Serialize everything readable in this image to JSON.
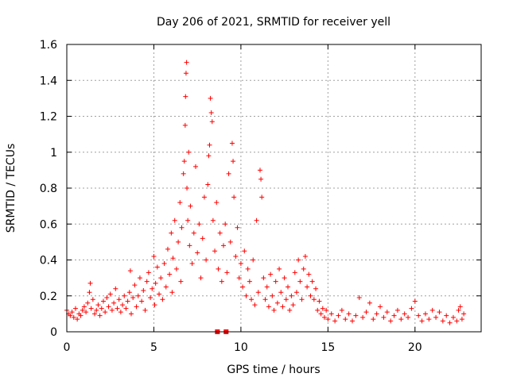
{
  "chart_data": {
    "type": "scatter",
    "title": "Day 206 of 2021, SRMTID for receiver yell",
    "xlabel": "GPS time / hours",
    "ylabel": "SRMTID / TECUs",
    "xlim": [
      0,
      23.8
    ],
    "ylim": [
      0,
      1.6
    ],
    "xticks": [
      0,
      5,
      10,
      15,
      20
    ],
    "yticks": [
      0,
      0.2,
      0.4,
      0.6,
      0.8,
      1,
      1.2,
      1.4,
      1.6
    ],
    "xtick_labels": [
      "0",
      "5",
      "10",
      "15",
      "20"
    ],
    "ytick_labels": [
      "0",
      "0.2",
      "0.4",
      "0.6",
      "0.8",
      "1",
      "1.2",
      "1.4",
      "1.6"
    ],
    "grid": true,
    "series": [
      {
        "name": "SRMTID",
        "marker": "plus",
        "color": "#ff0000",
        "points": [
          [
            0.0,
            0.12
          ],
          [
            0.1,
            0.1
          ],
          [
            0.2,
            0.09
          ],
          [
            0.3,
            0.11
          ],
          [
            0.4,
            0.08
          ],
          [
            0.5,
            0.13
          ],
          [
            0.6,
            0.07
          ],
          [
            0.7,
            0.1
          ],
          [
            0.8,
            0.09
          ],
          [
            0.9,
            0.12
          ],
          [
            1.0,
            0.14
          ],
          [
            1.1,
            0.11
          ],
          [
            1.2,
            0.16
          ],
          [
            1.3,
            0.22
          ],
          [
            1.35,
            0.27
          ],
          [
            1.4,
            0.13
          ],
          [
            1.5,
            0.18
          ],
          [
            1.6,
            0.1
          ],
          [
            1.7,
            0.12
          ],
          [
            1.8,
            0.15
          ],
          [
            1.9,
            0.09
          ],
          [
            2.0,
            0.13
          ],
          [
            2.1,
            0.17
          ],
          [
            2.2,
            0.11
          ],
          [
            2.3,
            0.19
          ],
          [
            2.4,
            0.14
          ],
          [
            2.5,
            0.21
          ],
          [
            2.6,
            0.12
          ],
          [
            2.7,
            0.16
          ],
          [
            2.8,
            0.24
          ],
          [
            2.9,
            0.13
          ],
          [
            3.0,
            0.18
          ],
          [
            3.1,
            0.11
          ],
          [
            3.2,
            0.15
          ],
          [
            3.3,
            0.2
          ],
          [
            3.4,
            0.13
          ],
          [
            3.5,
            0.17
          ],
          [
            3.6,
            0.22
          ],
          [
            3.65,
            0.34
          ],
          [
            3.7,
            0.1
          ],
          [
            3.8,
            0.19
          ],
          [
            3.9,
            0.26
          ],
          [
            4.0,
            0.14
          ],
          [
            4.1,
            0.2
          ],
          [
            4.2,
            0.3
          ],
          [
            4.3,
            0.17
          ],
          [
            4.4,
            0.23
          ],
          [
            4.5,
            0.12
          ],
          [
            4.6,
            0.28
          ],
          [
            4.7,
            0.33
          ],
          [
            4.8,
            0.19
          ],
          [
            4.9,
            0.24
          ],
          [
            5.0,
            0.42
          ],
          [
            5.05,
            0.15
          ],
          [
            5.1,
            0.27
          ],
          [
            5.2,
            0.36
          ],
          [
            5.3,
            0.21
          ],
          [
            5.4,
            0.3
          ],
          [
            5.5,
            0.18
          ],
          [
            5.6,
            0.38
          ],
          [
            5.7,
            0.25
          ],
          [
            5.8,
            0.46
          ],
          [
            5.9,
            0.32
          ],
          [
            6.0,
            0.55
          ],
          [
            6.05,
            0.22
          ],
          [
            6.1,
            0.41
          ],
          [
            6.2,
            0.62
          ],
          [
            6.3,
            0.35
          ],
          [
            6.4,
            0.5
          ],
          [
            6.5,
            0.72
          ],
          [
            6.55,
            0.28
          ],
          [
            6.6,
            0.58
          ],
          [
            6.7,
            0.88
          ],
          [
            6.75,
            0.95
          ],
          [
            6.8,
            1.15
          ],
          [
            6.82,
            1.31
          ],
          [
            6.85,
            1.44
          ],
          [
            6.88,
            1.5
          ],
          [
            6.9,
            0.8
          ],
          [
            6.95,
            0.62
          ],
          [
            7.0,
            1.0
          ],
          [
            7.05,
            0.48
          ],
          [
            7.1,
            0.7
          ],
          [
            7.2,
            0.38
          ],
          [
            7.3,
            0.55
          ],
          [
            7.4,
            0.92
          ],
          [
            7.5,
            0.44
          ],
          [
            7.6,
            0.6
          ],
          [
            7.7,
            0.3
          ],
          [
            7.8,
            0.52
          ],
          [
            7.9,
            0.75
          ],
          [
            8.0,
            0.4
          ],
          [
            8.1,
            0.82
          ],
          [
            8.15,
            0.98
          ],
          [
            8.2,
            1.04
          ],
          [
            8.25,
            1.3
          ],
          [
            8.3,
            1.22
          ],
          [
            8.35,
            1.17
          ],
          [
            8.4,
            0.62
          ],
          [
            8.5,
            0.45
          ],
          [
            8.6,
            0.72
          ],
          [
            8.7,
            0.35
          ],
          [
            8.8,
            0.55
          ],
          [
            8.9,
            0.28
          ],
          [
            9.0,
            0.48
          ],
          [
            9.1,
            0.6
          ],
          [
            9.2,
            0.33
          ],
          [
            9.3,
            0.88
          ],
          [
            9.4,
            0.5
          ],
          [
            9.5,
            1.05
          ],
          [
            9.55,
            0.95
          ],
          [
            9.6,
            0.75
          ],
          [
            9.7,
            0.42
          ],
          [
            9.8,
            0.58
          ],
          [
            9.9,
            0.3
          ],
          [
            10.0,
            0.38
          ],
          [
            10.1,
            0.25
          ],
          [
            10.2,
            0.45
          ],
          [
            10.3,
            0.2
          ],
          [
            10.4,
            0.35
          ],
          [
            10.5,
            0.28
          ],
          [
            10.6,
            0.18
          ],
          [
            10.7,
            0.4
          ],
          [
            10.8,
            0.15
          ],
          [
            10.9,
            0.62
          ],
          [
            11.0,
            0.22
          ],
          [
            11.1,
            0.9
          ],
          [
            11.15,
            0.85
          ],
          [
            11.2,
            0.75
          ],
          [
            11.3,
            0.3
          ],
          [
            11.4,
            0.18
          ],
          [
            11.5,
            0.25
          ],
          [
            11.6,
            0.14
          ],
          [
            11.7,
            0.32
          ],
          [
            11.8,
            0.2
          ],
          [
            11.9,
            0.12
          ],
          [
            12.0,
            0.28
          ],
          [
            12.1,
            0.16
          ],
          [
            12.2,
            0.35
          ],
          [
            12.3,
            0.22
          ],
          [
            12.4,
            0.14
          ],
          [
            12.5,
            0.3
          ],
          [
            12.6,
            0.18
          ],
          [
            12.7,
            0.25
          ],
          [
            12.8,
            0.12
          ],
          [
            12.9,
            0.2
          ],
          [
            13.0,
            0.15
          ],
          [
            13.1,
            0.33
          ],
          [
            13.2,
            0.22
          ],
          [
            13.3,
            0.4
          ],
          [
            13.4,
            0.28
          ],
          [
            13.5,
            0.18
          ],
          [
            13.6,
            0.35
          ],
          [
            13.7,
            0.42
          ],
          [
            13.8,
            0.25
          ],
          [
            13.9,
            0.32
          ],
          [
            14.0,
            0.2
          ],
          [
            14.1,
            0.28
          ],
          [
            14.2,
            0.18
          ],
          [
            14.3,
            0.24
          ],
          [
            14.4,
            0.12
          ],
          [
            14.5,
            0.17
          ],
          [
            14.6,
            0.1
          ],
          [
            14.7,
            0.13
          ],
          [
            14.8,
            0.08
          ],
          [
            14.9,
            0.12
          ],
          [
            15.0,
            0.07
          ],
          [
            15.2,
            0.1
          ],
          [
            15.4,
            0.06
          ],
          [
            15.6,
            0.09
          ],
          [
            15.8,
            0.12
          ],
          [
            16.0,
            0.07
          ],
          [
            16.2,
            0.1
          ],
          [
            16.4,
            0.06
          ],
          [
            16.6,
            0.09
          ],
          [
            16.8,
            0.19
          ],
          [
            17.0,
            0.08
          ],
          [
            17.2,
            0.11
          ],
          [
            17.4,
            0.16
          ],
          [
            17.6,
            0.07
          ],
          [
            17.8,
            0.1
          ],
          [
            18.0,
            0.14
          ],
          [
            18.2,
            0.08
          ],
          [
            18.4,
            0.11
          ],
          [
            18.6,
            0.06
          ],
          [
            18.8,
            0.09
          ],
          [
            19.0,
            0.12
          ],
          [
            19.2,
            0.07
          ],
          [
            19.4,
            0.1
          ],
          [
            19.6,
            0.08
          ],
          [
            19.8,
            0.13
          ],
          [
            20.0,
            0.17
          ],
          [
            20.2,
            0.09
          ],
          [
            20.4,
            0.06
          ],
          [
            20.6,
            0.1
          ],
          [
            20.8,
            0.07
          ],
          [
            21.0,
            0.12
          ],
          [
            21.2,
            0.08
          ],
          [
            21.4,
            0.11
          ],
          [
            21.6,
            0.06
          ],
          [
            21.8,
            0.09
          ],
          [
            22.0,
            0.05
          ],
          [
            22.2,
            0.08
          ],
          [
            22.4,
            0.06
          ],
          [
            22.5,
            0.12
          ],
          [
            22.6,
            0.14
          ],
          [
            22.7,
            0.07
          ],
          [
            22.8,
            0.1
          ]
        ]
      }
    ],
    "zero_markers": {
      "marker": "square",
      "x": [
        8.65,
        9.15
      ],
      "y": 0
    }
  }
}
